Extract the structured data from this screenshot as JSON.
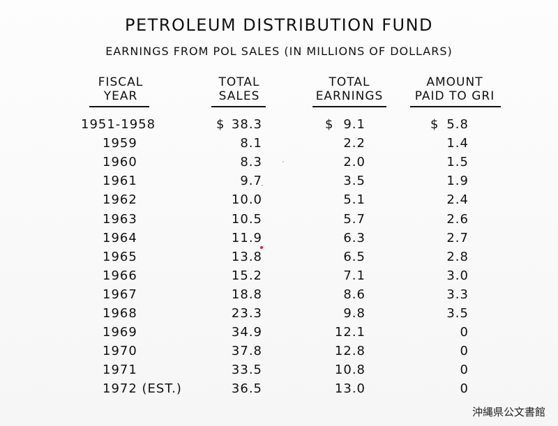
{
  "title": "PETROLEUM DISTRIBUTION FUND",
  "subtitle": "EARNINGS FROM POL SALES (IN MILLIONS OF DOLLARS)",
  "headers": {
    "fiscal_year": [
      "FISCAL",
      "YEAR"
    ],
    "total_sales": [
      "TOTAL",
      "SALES"
    ],
    "total_earnings": [
      "TOTAL",
      "EARNINGS"
    ],
    "amount_paid": [
      "AMOUNT",
      "PAID TO GRI"
    ]
  },
  "currency_symbol": "$",
  "rows": [
    {
      "year": "1951-1958",
      "sales": "38.3",
      "earnings": "9.1",
      "paid": "5.8"
    },
    {
      "year": "1959",
      "sales": "8.1",
      "earnings": "2.2",
      "paid": "1.4"
    },
    {
      "year": "1960",
      "sales": "8.3",
      "earnings": "2.0",
      "paid": "1.5"
    },
    {
      "year": "1961",
      "sales": "9.7",
      "earnings": "3.5",
      "paid": "1.9"
    },
    {
      "year": "1962",
      "sales": "10.0",
      "earnings": "5.1",
      "paid": "2.4"
    },
    {
      "year": "1963",
      "sales": "10.5",
      "earnings": "5.7",
      "paid": "2.6"
    },
    {
      "year": "1964",
      "sales": "11.9",
      "earnings": "6.3",
      "paid": "2.7"
    },
    {
      "year": "1965",
      "sales": "13.8",
      "earnings": "6.5",
      "paid": "2.8"
    },
    {
      "year": "1966",
      "sales": "15.2",
      "earnings": "7.1",
      "paid": "3.0"
    },
    {
      "year": "1967",
      "sales": "18.8",
      "earnings": "8.6",
      "paid": "3.3"
    },
    {
      "year": "1968",
      "sales": "23.3",
      "earnings": "9.8",
      "paid": "3.5"
    },
    {
      "year": "1969",
      "sales": "34.9",
      "earnings": "12.1",
      "paid": "0"
    },
    {
      "year": "1970",
      "sales": "37.8",
      "earnings": "12.8",
      "paid": "0"
    },
    {
      "year": "1971",
      "sales": "33.5",
      "earnings": "10.8",
      "paid": "0"
    },
    {
      "year": "1972 (EST.)",
      "sales": "36.5",
      "earnings": "13.0",
      "paid": "0"
    }
  ],
  "watermark": "沖縄県公文書館",
  "colors": {
    "ink": "#111111",
    "paper": "#f8f8f8",
    "speck": "#d81e3c"
  }
}
